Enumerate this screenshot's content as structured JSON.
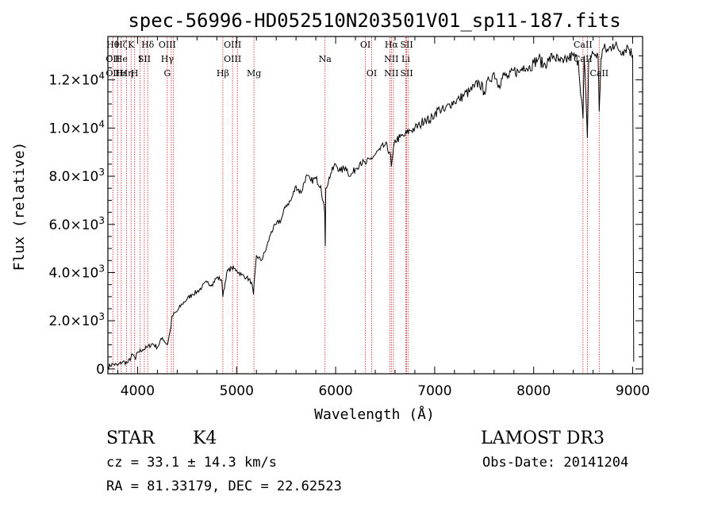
{
  "chart_data": {
    "type": "line",
    "title": "spec-56996-HD052510N203501V01_sp11-187.fits",
    "xlabel": "Wavelength (Å)",
    "ylabel": "Flux (relative)",
    "xlim": [
      3700,
      9100
    ],
    "ylim": [
      -200,
      13800
    ],
    "x_ticks": [
      4000,
      5000,
      6000,
      7000,
      8000,
      9000
    ],
    "x_tick_labels": [
      "4000",
      "5000",
      "6000",
      "7000",
      "8000",
      "9000"
    ],
    "y_ticks": [
      0,
      2000,
      4000,
      6000,
      8000,
      10000,
      12000
    ],
    "y_tick_labels": [
      {
        "base": "0",
        "sup": ""
      },
      {
        "base": "2.0×10",
        "sup": "3"
      },
      {
        "base": "4.0×10",
        "sup": "3"
      },
      {
        "base": "6.0×10",
        "sup": "3"
      },
      {
        "base": "8.0×10",
        "sup": "3"
      },
      {
        "base": "1.0×10",
        "sup": "4"
      },
      {
        "base": "1.2×10",
        "sup": "4"
      }
    ],
    "series": [
      {
        "name": "flux",
        "x": [
          3700,
          3750,
          3800,
          3850,
          3900,
          3950,
          3980,
          4000,
          4050,
          4100,
          4150,
          4200,
          4250,
          4300,
          4330,
          4350,
          4400,
          4450,
          4500,
          4550,
          4600,
          4650,
          4700,
          4750,
          4800,
          4850,
          4861,
          4900,
          4950,
          5000,
          5050,
          5100,
          5150,
          5170,
          5200,
          5250,
          5300,
          5350,
          5400,
          5450,
          5500,
          5550,
          5600,
          5650,
          5700,
          5750,
          5800,
          5850,
          5890,
          5895,
          5900,
          5950,
          6000,
          6050,
          6100,
          6150,
          6200,
          6250,
          6300,
          6350,
          6400,
          6450,
          6500,
          6550,
          6563,
          6600,
          6650,
          6700,
          6750,
          6800,
          6850,
          6900,
          6950,
          7000,
          7050,
          7100,
          7150,
          7200,
          7250,
          7300,
          7350,
          7400,
          7450,
          7500,
          7550,
          7600,
          7650,
          7700,
          7750,
          7800,
          7850,
          7900,
          7950,
          8000,
          8050,
          8100,
          8150,
          8200,
          8250,
          8300,
          8350,
          8400,
          8450,
          8498,
          8510,
          8542,
          8555,
          8600,
          8650,
          8662,
          8680,
          8700,
          8750,
          8800,
          8850,
          8900,
          8950,
          9000,
          9010
        ],
        "y": [
          100,
          200,
          150,
          300,
          250,
          600,
          400,
          700,
          800,
          900,
          1050,
          900,
          1300,
          1000,
          1600,
          2200,
          2400,
          2700,
          2900,
          3100,
          3200,
          3400,
          3600,
          3500,
          3800,
          3700,
          3000,
          4000,
          4200,
          4100,
          3900,
          3800,
          3600,
          3100,
          4700,
          4500,
          5000,
          5700,
          6000,
          6200,
          6800,
          7000,
          7600,
          7300,
          8000,
          7800,
          7900,
          7600,
          6500,
          5100,
          7500,
          8100,
          8500,
          8200,
          8400,
          8000,
          8300,
          8600,
          8500,
          8700,
          8900,
          9100,
          9300,
          9000,
          8400,
          9500,
          9600,
          9700,
          9900,
          10000,
          10100,
          10400,
          10300,
          10600,
          10800,
          10700,
          11000,
          11100,
          11200,
          11400,
          11500,
          11700,
          11900,
          11500,
          12000,
          12300,
          11800,
          12200,
          12100,
          12400,
          12300,
          12600,
          12500,
          12700,
          12900,
          12600,
          12800,
          13000,
          12800,
          12700,
          12900,
          13000,
          12800,
          10400,
          13000,
          9600,
          12800,
          13100,
          13000,
          10700,
          12900,
          13300,
          13200,
          13500,
          13300,
          13200,
          13400,
          13000,
          300
        ]
      }
    ],
    "lines": [
      {
        "x": 3750,
        "labels": [
          "Hθ",
          "OII",
          "OII"
        ]
      },
      {
        "x": 3798,
        "labels": [
          "",
          "",
          ""
        ]
      },
      {
        "x": 3835,
        "labels": [
          "Hζ",
          "He",
          "Hε"
        ]
      },
      {
        "x": 3889,
        "labels": [
          "",
          "",
          "Hη"
        ]
      },
      {
        "x": 3934,
        "labels": [
          "K",
          "",
          ""
        ]
      },
      {
        "x": 3970,
        "labels": [
          "",
          "",
          "H"
        ]
      },
      {
        "x": 4026,
        "labels": [
          "",
          "I",
          ""
        ]
      },
      {
        "x": 4068,
        "labels": [
          "",
          "SII",
          ""
        ]
      },
      {
        "x": 4102,
        "labels": [
          "Hδ",
          "",
          ""
        ]
      },
      {
        "x": 4300,
        "labels": [
          "OIII",
          "Hγ",
          "G"
        ]
      },
      {
        "x": 4340,
        "labels": [
          "",
          "",
          ""
        ]
      },
      {
        "x": 4363,
        "labels": [
          "",
          "",
          ""
        ]
      },
      {
        "x": 4861,
        "labels": [
          "",
          "",
          "Hβ"
        ]
      },
      {
        "x": 4959,
        "labels": [
          "OIII",
          "OIII",
          ""
        ]
      },
      {
        "x": 5007,
        "labels": [
          "",
          "",
          ""
        ]
      },
      {
        "x": 5175,
        "labels": [
          "",
          "",
          "Mg"
        ]
      },
      {
        "x": 5893,
        "labels": [
          "",
          "Na",
          ""
        ]
      },
      {
        "x": 6300,
        "labels": [
          "OI",
          "",
          ""
        ]
      },
      {
        "x": 6364,
        "labels": [
          "",
          "",
          "OI"
        ]
      },
      {
        "x": 6548,
        "labels": [
          "",
          "",
          ""
        ]
      },
      {
        "x": 6563,
        "labels": [
          "Hα",
          "NII",
          "NII"
        ]
      },
      {
        "x": 6584,
        "labels": [
          "",
          "",
          ""
        ]
      },
      {
        "x": 6708,
        "labels": [
          "",
          "Li",
          ""
        ]
      },
      {
        "x": 6717,
        "labels": [
          "SII",
          "",
          "SII"
        ]
      },
      {
        "x": 6731,
        "labels": [
          "",
          "",
          ""
        ]
      },
      {
        "x": 8498,
        "labels": [
          "CaII",
          "CaII",
          ""
        ]
      },
      {
        "x": 8542,
        "labels": [
          "",
          "",
          ""
        ]
      },
      {
        "x": 8662,
        "labels": [
          "",
          "",
          "CaII"
        ]
      }
    ]
  },
  "info": {
    "object_class": "STAR",
    "subclass": "K4",
    "survey": "LAMOST DR3",
    "cz": "cz = 33.1 ± 14.3 km/s",
    "obs_date": "Obs-Date: 20141204",
    "coords": "RA =  81.33179, DEC =  22.62523"
  },
  "colors": {
    "spectrum": "#000000",
    "line_marker": "#cc2222",
    "axis": "#000000",
    "background": "#ffffff"
  }
}
